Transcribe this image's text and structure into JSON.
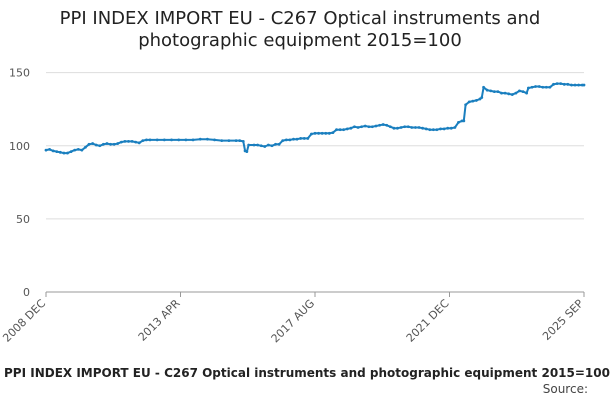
{
  "caption": "PPI INDEX IMPORT EU - C267 Optical instruments and photographic equipment 2015=100",
  "source_label": "Source:",
  "chart_data": {
    "type": "line",
    "title_lines": [
      "PPI INDEX IMPORT EU - C267 Optical instruments and",
      "photographic equipment 2015=100"
    ],
    "xlabel": "",
    "ylabel": "",
    "ylim": [
      0,
      160
    ],
    "yticks": [
      0,
      50,
      100,
      150
    ],
    "xticks": [
      "2008 DEC",
      "2013 APR",
      "2017 AUG",
      "2021 DEC",
      "2025 SEP"
    ],
    "grid": true,
    "line_color": "#1a7fbf",
    "series": [
      {
        "values": [
          [
            0,
            97
          ],
          [
            2,
            97.5
          ],
          [
            4,
            96.5
          ],
          [
            6,
            96
          ],
          [
            8,
            95.5
          ],
          [
            10,
            95
          ],
          [
            12,
            95
          ],
          [
            14,
            96
          ],
          [
            16,
            97
          ],
          [
            18,
            97.5
          ],
          [
            20,
            97
          ],
          [
            22,
            99
          ],
          [
            24,
            101
          ],
          [
            26,
            101.5
          ],
          [
            28,
            100.5
          ],
          [
            30,
            100
          ],
          [
            32,
            101
          ],
          [
            34,
            101.5
          ],
          [
            36,
            101
          ],
          [
            38,
            101
          ],
          [
            40,
            101.5
          ],
          [
            42,
            102.5
          ],
          [
            44,
            103
          ],
          [
            46,
            103
          ],
          [
            48,
            103
          ],
          [
            50,
            102.5
          ],
          [
            52,
            102
          ],
          [
            54,
            103.5
          ],
          [
            56,
            104
          ],
          [
            58,
            104
          ],
          [
            62,
            104
          ],
          [
            66,
            104
          ],
          [
            70,
            104
          ],
          [
            74,
            104
          ],
          [
            78,
            104
          ],
          [
            82,
            104
          ],
          [
            86,
            104.5
          ],
          [
            90,
            104.5
          ],
          [
            94,
            104
          ],
          [
            98,
            103.5
          ],
          [
            102,
            103.5
          ],
          [
            106,
            103.5
          ],
          [
            108,
            103.5
          ],
          [
            110,
            103
          ],
          [
            111,
            96.5
          ],
          [
            112,
            96
          ],
          [
            113,
            100.5
          ],
          [
            116,
            100.5
          ],
          [
            118,
            100.5
          ],
          [
            120,
            100
          ],
          [
            122,
            99.5
          ],
          [
            124,
            100.5
          ],
          [
            126,
            100
          ],
          [
            128,
            101
          ],
          [
            130,
            101
          ],
          [
            132,
            103.5
          ],
          [
            134,
            104
          ],
          [
            136,
            104
          ],
          [
            138,
            104.5
          ],
          [
            140,
            104.5
          ],
          [
            142,
            105
          ],
          [
            144,
            105
          ],
          [
            146,
            105
          ],
          [
            148,
            108
          ],
          [
            150,
            108.5
          ],
          [
            152,
            108.5
          ],
          [
            154,
            108.5
          ],
          [
            156,
            108.5
          ],
          [
            158,
            108.5
          ],
          [
            160,
            109
          ],
          [
            162,
            111
          ],
          [
            164,
            111
          ],
          [
            166,
            111
          ],
          [
            168,
            111.5
          ],
          [
            170,
            112
          ],
          [
            172,
            113
          ],
          [
            174,
            112.5
          ],
          [
            176,
            113
          ],
          [
            178,
            113.5
          ],
          [
            180,
            113
          ],
          [
            182,
            113
          ],
          [
            184,
            113.5
          ],
          [
            186,
            114
          ],
          [
            188,
            114.5
          ],
          [
            190,
            114
          ],
          [
            192,
            113
          ],
          [
            194,
            112
          ],
          [
            196,
            112
          ],
          [
            198,
            112.5
          ],
          [
            200,
            113
          ],
          [
            202,
            113
          ],
          [
            204,
            112.5
          ],
          [
            206,
            112.5
          ],
          [
            208,
            112.5
          ],
          [
            210,
            112
          ],
          [
            212,
            111.5
          ],
          [
            214,
            111
          ],
          [
            216,
            111
          ],
          [
            218,
            111
          ],
          [
            220,
            111.5
          ],
          [
            222,
            111.5
          ],
          [
            224,
            112
          ],
          [
            226,
            112
          ],
          [
            228,
            112.5
          ],
          [
            230,
            116
          ],
          [
            232,
            117
          ],
          [
            233,
            117
          ],
          [
            234,
            128
          ],
          [
            236,
            130
          ],
          [
            238,
            130.5
          ],
          [
            240,
            131
          ],
          [
            242,
            132
          ],
          [
            243,
            133
          ],
          [
            244,
            140
          ],
          [
            246,
            138
          ],
          [
            248,
            137.5
          ],
          [
            250,
            137
          ],
          [
            252,
            137
          ],
          [
            254,
            136
          ],
          [
            256,
            136
          ],
          [
            258,
            135.5
          ],
          [
            260,
            135
          ],
          [
            262,
            136
          ],
          [
            264,
            137.5
          ],
          [
            266,
            137
          ],
          [
            268,
            136
          ],
          [
            269,
            139.5
          ],
          [
            271,
            140
          ],
          [
            273,
            140.5
          ],
          [
            275,
            140.5
          ],
          [
            277,
            140
          ],
          [
            279,
            140
          ],
          [
            281,
            140
          ],
          [
            283,
            142
          ],
          [
            285,
            142.5
          ],
          [
            287,
            142.5
          ],
          [
            289,
            142
          ],
          [
            291,
            142
          ],
          [
            293,
            141.5
          ],
          [
            295,
            141.5
          ],
          [
            297,
            141.5
          ],
          [
            299,
            141.5
          ],
          [
            300,
            141.5
          ]
        ]
      }
    ]
  }
}
